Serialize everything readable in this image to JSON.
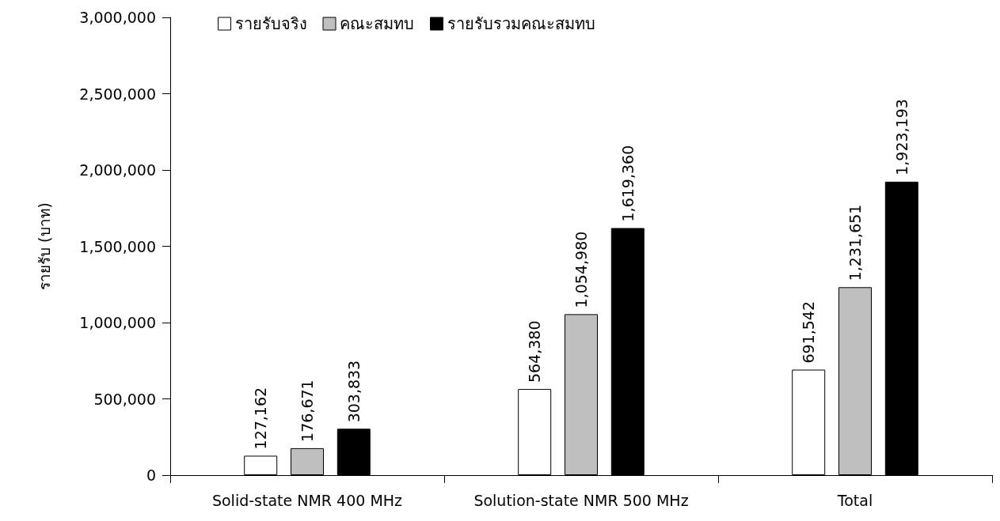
{
  "chart_data": {
    "type": "bar",
    "ylabel": "รายรับ (บาท)",
    "categories": [
      "Solid-state NMR 400 MHz",
      "Solution-state NMR 500 MHz",
      "Total"
    ],
    "series": [
      {
        "name": "รายรับจริง",
        "color": "#ffffff",
        "values": [
          127162,
          564380,
          691542
        ],
        "value_labels": [
          "127,162",
          "564,380",
          "691,542"
        ]
      },
      {
        "name": "คณะสมทบ",
        "color": "#bfbfbf",
        "values": [
          176671,
          1054980,
          1231651
        ],
        "value_labels": [
          "176,671",
          "1,054,980",
          "1,231,651"
        ]
      },
      {
        "name": "รายรับรวมคณะสมทบ",
        "color": "#000000",
        "values": [
          303833,
          1619360,
          1923193
        ],
        "value_labels": [
          "303,833",
          "1,619,360",
          "1,923,193"
        ]
      }
    ],
    "ylim": [
      0,
      3000000
    ],
    "yticks": [
      0,
      {
        "value": 500000,
        "label": "500,000"
      },
      {
        "value": 1000000,
        "label": "1,000,000"
      },
      {
        "value": 1500000,
        "label": "1,500,000"
      },
      {
        "value": 2000000,
        "label": "2,000,000"
      },
      {
        "value": 2500000,
        "label": "2,500,000"
      },
      {
        "value": 3000000,
        "label": "3,000,000"
      }
    ],
    "grid": false,
    "legend": "top left"
  }
}
